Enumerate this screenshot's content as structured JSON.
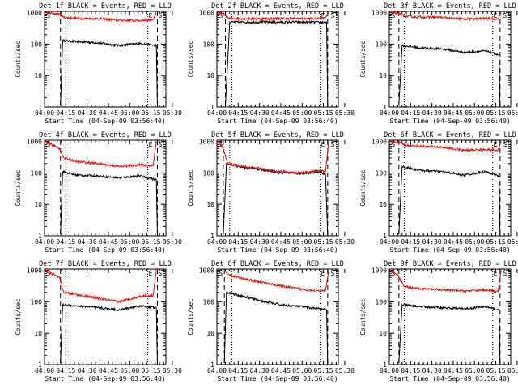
{
  "chart_data": [
    {
      "type": "line",
      "title": "Det 1f BLACK = Events, RED = LLD",
      "xlabel": "Start Time (04-Sep-09 03:56:40)",
      "ylabel": "Counts/sec",
      "xticks": [
        "04:00",
        "04:15",
        "04:30",
        "04:45",
        "05:00",
        "05:15",
        "05:30"
      ],
      "yticks": [
        "1",
        "10",
        "100",
        "1000"
      ],
      "xlim": [
        0,
        5.7
      ],
      "ylim": [
        1,
        1100
      ],
      "markers": [
        {
          "label": "S",
          "x": 0.05
        },
        {
          "label": "E",
          "x": 4.85
        },
        {
          "label": "S",
          "x": 5.3
        }
      ],
      "dashed_lines": [
        0.75,
        5.3
      ],
      "dotted_lines": [
        1.0,
        4.85
      ],
      "series": [
        {
          "name": "Events",
          "color": "#000000",
          "data": [
            [
              0.75,
              1.1
            ],
            [
              0.85,
              130
            ],
            [
              1.5,
              120
            ],
            [
              2.5,
              110
            ],
            [
              3.5,
              90
            ],
            [
              4.5,
              105
            ],
            [
              5.25,
              90
            ],
            [
              5.3,
              1
            ]
          ]
        },
        {
          "name": "LLD",
          "color": "#ff0000",
          "data": [
            [
              0.05,
              1000
            ],
            [
              0.7,
              900
            ],
            [
              0.9,
              700
            ],
            [
              1.5,
              650
            ],
            [
              2.5,
              650
            ],
            [
              3.5,
              570
            ],
            [
              4.5,
              560
            ],
            [
              5.1,
              600
            ],
            [
              5.25,
              1000
            ]
          ]
        }
      ]
    },
    {
      "type": "line",
      "title": "Det 2f BLACK = Events, RED = LLD",
      "xlabel": "Start Time (04-Sep-09 03:56:40)",
      "ylabel": "Counts/sec",
      "xticks": [
        "04:00",
        "04:15",
        "04:30",
        "04:45",
        "05:00",
        "05:15",
        "05:30"
      ],
      "yticks": [
        "1",
        "10",
        "100",
        "1000"
      ],
      "xlim": [
        0,
        5.7
      ],
      "ylim": [
        1,
        1100
      ],
      "markers": [
        {
          "label": "S",
          "x": 0.05
        },
        {
          "label": "E",
          "x": 4.85
        },
        {
          "label": "S",
          "x": 5.3
        }
      ],
      "dashed_lines": [
        0.4,
        5.2
      ],
      "dotted_lines": [
        0.7,
        4.85
      ],
      "series": [
        {
          "name": "Events",
          "color": "#000000",
          "data": [
            [
              0.4,
              1.1
            ],
            [
              0.6,
              500
            ],
            [
              2,
              500
            ],
            [
              3.5,
              500
            ],
            [
              4.8,
              490
            ],
            [
              5.15,
              500
            ],
            [
              5.2,
              1
            ]
          ]
        },
        {
          "name": "LLD",
          "color": "#ff0000",
          "data": [
            [
              0.05,
              1000
            ],
            [
              0.35,
              900
            ],
            [
              0.55,
              650
            ],
            [
              2,
              640
            ],
            [
              3.5,
              650
            ],
            [
              4.8,
              640
            ],
            [
              5.1,
              700
            ],
            [
              5.25,
              1000
            ]
          ]
        }
      ]
    },
    {
      "type": "line",
      "title": "Det 3f BLACK = Events, RED = LLD",
      "xlabel": "Start Time (04-Sep-09 03:56:40)",
      "ylabel": "Counts/sec",
      "xticks": [
        "04:00",
        "04:15",
        "04:30",
        "04:45",
        "05:00",
        "05:15",
        "05:30"
      ],
      "yticks": [
        "1",
        "10",
        "100",
        "1000"
      ],
      "xlim": [
        0,
        5.7
      ],
      "ylim": [
        1,
        1100
      ],
      "markers": [
        {
          "label": "S",
          "x": 0.05
        },
        {
          "label": "E",
          "x": 4.85
        },
        {
          "label": "S",
          "x": 5.3
        }
      ],
      "dashed_lines": [
        0.45,
        5.2
      ],
      "dotted_lines": [
        0.7,
        4.85
      ],
      "series": [
        {
          "name": "Events",
          "color": "#000000",
          "data": [
            [
              0.45,
              1.1
            ],
            [
              0.6,
              90
            ],
            [
              1.5,
              75
            ],
            [
              2.5,
              70
            ],
            [
              3.5,
              55
            ],
            [
              4.5,
              60
            ],
            [
              5.15,
              45
            ],
            [
              5.2,
              1
            ]
          ]
        },
        {
          "name": "LLD",
          "color": "#ff0000",
          "data": [
            [
              0.05,
              1000
            ],
            [
              0.4,
              950
            ],
            [
              0.8,
              750
            ],
            [
              1.5,
              720
            ],
            [
              2.5,
              700
            ],
            [
              3.5,
              620
            ],
            [
              4.5,
              650
            ],
            [
              5.1,
              620
            ],
            [
              5.25,
              1000
            ]
          ]
        }
      ]
    },
    {
      "type": "line",
      "title": "Det 4f BLACK = Events, RED = LLD",
      "xlabel": "Start Time (04-Sep-09 03:56:40)",
      "ylabel": "Counts/sec",
      "xticks": [
        "04:00",
        "04:15",
        "04:30",
        "04:45",
        "05:00",
        "05:15",
        "05:30"
      ],
      "yticks": [
        "1",
        "10",
        "100",
        "1000"
      ],
      "xlim": [
        0,
        5.7
      ],
      "ylim": [
        1,
        1100
      ],
      "markers": [
        {
          "label": "S",
          "x": 0.05
        },
        {
          "label": "E",
          "x": 4.85
        },
        {
          "label": "S",
          "x": 5.3
        }
      ],
      "dashed_lines": [
        0.75,
        5.3
      ],
      "dotted_lines": [
        1.0,
        4.85
      ],
      "series": [
        {
          "name": "Events",
          "color": "#000000",
          "data": [
            [
              0.75,
              1.1
            ],
            [
              0.85,
              110
            ],
            [
              1.5,
              85
            ],
            [
              2.5,
              80
            ],
            [
              3.5,
              70
            ],
            [
              4.5,
              80
            ],
            [
              5.25,
              60
            ],
            [
              5.3,
              1
            ]
          ]
        },
        {
          "name": "LLD",
          "color": "#ff0000",
          "data": [
            [
              0.05,
              1000
            ],
            [
              0.7,
              600
            ],
            [
              0.9,
              300
            ],
            [
              1.5,
              230
            ],
            [
              2.5,
              200
            ],
            [
              3.5,
              160
            ],
            [
              4.5,
              180
            ],
            [
              5.1,
              170
            ],
            [
              5.25,
              1000
            ]
          ]
        }
      ]
    },
    {
      "type": "line",
      "title": "Det 5f BLACK = Events, RED = LLD",
      "xlabel": "Start Time (04-Sep-09 03:56:40)",
      "ylabel": "Counts/sec",
      "xticks": [
        "04:00",
        "04:15",
        "04:30",
        "04:45",
        "05:00",
        "05:15",
        "05:30"
      ],
      "yticks": [
        "1",
        "10",
        "100",
        "1000"
      ],
      "xlim": [
        0,
        5.7
      ],
      "ylim": [
        1,
        1100
      ],
      "markers": [
        {
          "label": "S",
          "x": 0.05
        },
        {
          "label": "E",
          "x": 4.85
        },
        {
          "label": "S",
          "x": 5.3
        }
      ],
      "dashed_lines": [
        0.3,
        5.2
      ],
      "dotted_lines": [
        0.6,
        4.85
      ],
      "series": [
        {
          "name": "Events",
          "color": "#000000",
          "data": [
            [
              0.3,
              1.1
            ],
            [
              0.45,
              200
            ],
            [
              1.2,
              150
            ],
            [
              2,
              130
            ],
            [
              3,
              100
            ],
            [
              4,
              95
            ],
            [
              4.8,
              110
            ],
            [
              5.1,
              90
            ],
            [
              5.2,
              1
            ]
          ]
        },
        {
          "name": "LLD",
          "color": "#ff0000",
          "data": [
            [
              0.05,
              1000
            ],
            [
              0.3,
              600
            ],
            [
              0.5,
              200
            ],
            [
              1.2,
              160
            ],
            [
              2,
              140
            ],
            [
              3,
              110
            ],
            [
              4,
              100
            ],
            [
              4.8,
              120
            ],
            [
              5.1,
              110
            ],
            [
              5.25,
              1000
            ]
          ]
        }
      ]
    },
    {
      "type": "line",
      "title": "Det 6f BLACK = Events, RED = LLD",
      "xlabel": "Start Time (04-Sep-09 03:56:40)",
      "ylabel": "Counts/sec",
      "xticks": [
        "04:00",
        "04:15",
        "04:30",
        "04:45",
        "05:00",
        "05:15",
        "05:30"
      ],
      "yticks": [
        "1",
        "10",
        "100",
        "1000"
      ],
      "xlim": [
        0,
        5.7
      ],
      "ylim": [
        1,
        1100
      ],
      "markers": [
        {
          "label": "S",
          "x": 0.05
        },
        {
          "label": "E",
          "x": 4.85
        },
        {
          "label": "S",
          "x": 5.3
        }
      ],
      "dashed_lines": [
        0.45,
        5.2
      ],
      "dotted_lines": [
        0.7,
        4.85
      ],
      "series": [
        {
          "name": "Events",
          "color": "#000000",
          "data": [
            [
              0.45,
              1.1
            ],
            [
              0.6,
              160
            ],
            [
              1.5,
              120
            ],
            [
              2.5,
              110
            ],
            [
              3.5,
              85
            ],
            [
              4.5,
              110
            ],
            [
              5.15,
              80
            ],
            [
              5.2,
              1
            ]
          ]
        },
        {
          "name": "LLD",
          "color": "#ff0000",
          "data": [
            [
              0.05,
              1000
            ],
            [
              0.4,
              950
            ],
            [
              0.8,
              750
            ],
            [
              1.5,
              700
            ],
            [
              2.5,
              650
            ],
            [
              3.5,
              520
            ],
            [
              4.5,
              560
            ],
            [
              5.1,
              520
            ],
            [
              5.25,
              1000
            ]
          ]
        }
      ]
    },
    {
      "type": "line",
      "title": "Det 7f BLACK = Events, RED = LLD",
      "xlabel": "Start Time (04-Sep-09 03:56:40)",
      "ylabel": "Counts/sec",
      "xticks": [
        "04:00",
        "04:15",
        "04:30",
        "04:45",
        "05:00",
        "05:15",
        "05:30"
      ],
      "yticks": [
        "1",
        "10",
        "100",
        "1000"
      ],
      "xlim": [
        0,
        5.7
      ],
      "ylim": [
        1,
        1100
      ],
      "markers": [
        {
          "label": "S",
          "x": 0.05
        },
        {
          "label": "E",
          "x": 4.85
        },
        {
          "label": "S",
          "x": 5.3
        }
      ],
      "dashed_lines": [
        0.75,
        5.3
      ],
      "dotted_lines": [
        1.0,
        4.85
      ],
      "series": [
        {
          "name": "Events",
          "color": "#000000",
          "data": [
            [
              0.75,
              1.1
            ],
            [
              0.85,
              80
            ],
            [
              1.5,
              75
            ],
            [
              2.5,
              65
            ],
            [
              3.5,
              55
            ],
            [
              4.5,
              75
            ],
            [
              5.25,
              65
            ],
            [
              5.3,
              1
            ]
          ]
        },
        {
          "name": "LLD",
          "color": "#ff0000",
          "data": [
            [
              0.05,
              1000
            ],
            [
              0.7,
              600
            ],
            [
              0.9,
              200
            ],
            [
              1.5,
              170
            ],
            [
              2.5,
              130
            ],
            [
              3.5,
              100
            ],
            [
              4.5,
              150
            ],
            [
              5.1,
              160
            ],
            [
              5.25,
              1000
            ]
          ]
        }
      ]
    },
    {
      "type": "line",
      "title": "Det 8f BLACK = Events, RED = LLD",
      "xlabel": "Start Time (04-Sep-09 03:56:40)",
      "ylabel": "Counts/sec",
      "xticks": [
        "04:00",
        "04:15",
        "04:30",
        "04:45",
        "05:00",
        "05:15",
        "05:30"
      ],
      "yticks": [
        "1",
        "10",
        "100",
        "1000"
      ],
      "xlim": [
        0,
        5.7
      ],
      "ylim": [
        1,
        1100
      ],
      "markers": [
        {
          "label": "S",
          "x": 0.05
        },
        {
          "label": "E",
          "x": 4.85
        },
        {
          "label": "S",
          "x": 5.3
        }
      ],
      "dashed_lines": [
        0.35,
        5.2
      ],
      "dotted_lines": [
        0.7,
        4.85
      ],
      "series": [
        {
          "name": "Events",
          "color": "#000000",
          "data": [
            [
              0.35,
              1.1
            ],
            [
              0.45,
              200
            ],
            [
              1.2,
              150
            ],
            [
              2,
              110
            ],
            [
              3,
              80
            ],
            [
              4,
              70
            ],
            [
              4.8,
              60
            ],
            [
              5.15,
              55
            ],
            [
              5.2,
              1
            ]
          ]
        },
        {
          "name": "LLD",
          "color": "#ff0000",
          "data": [
            [
              0.4,
              900
            ],
            [
              0.6,
              700
            ],
            [
              1.2,
              550
            ],
            [
              2,
              430
            ],
            [
              3,
              320
            ],
            [
              4,
              250
            ],
            [
              4.8,
              220
            ],
            [
              5.1,
              230
            ],
            [
              5.25,
              1000
            ]
          ]
        }
      ]
    },
    {
      "type": "line",
      "title": "Det 9f BLACK = Events, RED = LLD",
      "xlabel": "Start Time (04-Sep-09 03:56:40)",
      "ylabel": "Counts/sec",
      "xticks": [
        "04:00",
        "04:15",
        "04:30",
        "04:45",
        "05:00",
        "05:15",
        "05:30"
      ],
      "yticks": [
        "1",
        "10",
        "100",
        "1000"
      ],
      "xlim": [
        0,
        5.7
      ],
      "ylim": [
        1,
        1100
      ],
      "markers": [
        {
          "label": "S",
          "x": 0.05
        },
        {
          "label": "E",
          "x": 4.85
        },
        {
          "label": "S",
          "x": 5.3
        }
      ],
      "dashed_lines": [
        0.45,
        5.2
      ],
      "dotted_lines": [
        0.7,
        4.85
      ],
      "series": [
        {
          "name": "Events",
          "color": "#000000",
          "data": [
            [
              0.45,
              1.1
            ],
            [
              0.6,
              80
            ],
            [
              1.5,
              70
            ],
            [
              2.5,
              65
            ],
            [
              3.5,
              60
            ],
            [
              4.5,
              70
            ],
            [
              5.15,
              55
            ],
            [
              5.2,
              1
            ]
          ]
        },
        {
          "name": "LLD",
          "color": "#ff0000",
          "data": [
            [
              0.05,
              1000
            ],
            [
              0.4,
              700
            ],
            [
              0.7,
              300
            ],
            [
              1.5,
              260
            ],
            [
              2.5,
              240
            ],
            [
              3.5,
              220
            ],
            [
              4.5,
              240
            ],
            [
              5.1,
              210
            ],
            [
              5.25,
              1000
            ]
          ]
        }
      ]
    }
  ]
}
